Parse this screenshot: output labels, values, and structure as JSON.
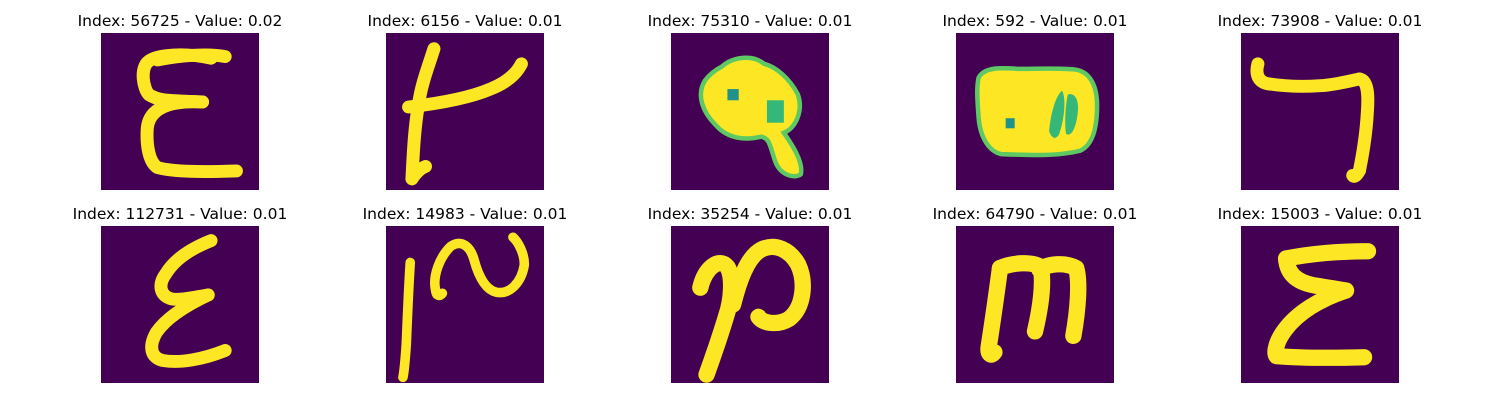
{
  "colors": {
    "background": "#440154",
    "stroke": "#fde725",
    "edge": "#21918c"
  },
  "panels": [
    {
      "title": "Index: 56725 - Value: 0.02",
      "glyph": "epsilon-shape"
    },
    {
      "title": "Index: 6156 - Value: 0.01",
      "glyph": "t-shape"
    },
    {
      "title": "Index: 75310 - Value: 0.01",
      "glyph": "nine-shape"
    },
    {
      "title": "Index: 592 - Value: 0.01",
      "glyph": "eight-shape"
    },
    {
      "title": "Index: 73908 - Value: 0.01",
      "glyph": "seven-shape"
    },
    {
      "title": "Index: 112731 - Value: 0.01",
      "glyph": "epsilon-shape"
    },
    {
      "title": "Index: 14983 - Value: 0.01",
      "glyph": "wave-shape"
    },
    {
      "title": "Index: 35254 - Value: 0.01",
      "glyph": "wave-shape"
    },
    {
      "title": "Index: 64790 - Value: 0.01",
      "glyph": "m-shape"
    },
    {
      "title": "Index: 15003 - Value: 0.01",
      "glyph": "epsilon-shape"
    }
  ]
}
